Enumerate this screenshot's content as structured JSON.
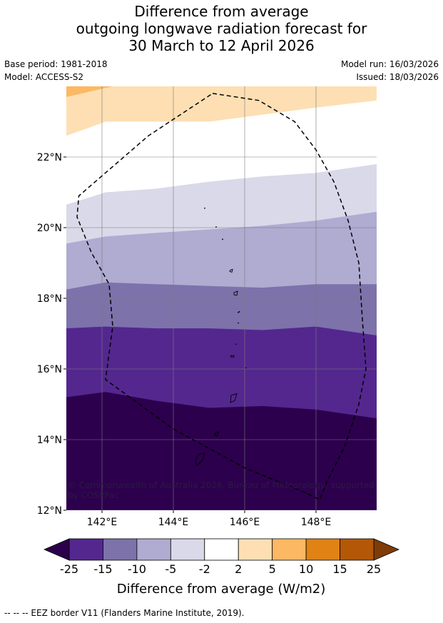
{
  "title": {
    "line1": "Difference from average",
    "line2": "outgoing longwave radiation forecast for",
    "line3": "30 March to 12 April 2026"
  },
  "meta": {
    "base_period": "Base period: 1981-2018",
    "model": "Model: ACCESS-S2",
    "model_run": "Model run: 16/03/2026",
    "issued": "Issued: 18/03/2026"
  },
  "map": {
    "lon_range": [
      141.0,
      149.7
    ],
    "lat_range": [
      12.0,
      24.0
    ],
    "lon_ticks": [
      {
        "value": 142,
        "label": "142°E"
      },
      {
        "value": 144,
        "label": "144°E"
      },
      {
        "value": 146,
        "label": "146°E"
      },
      {
        "value": 148,
        "label": "148°E"
      }
    ],
    "lat_ticks": [
      {
        "value": 12,
        "label": "12°N"
      },
      {
        "value": 14,
        "label": "14°N"
      },
      {
        "value": 16,
        "label": "16°N"
      },
      {
        "value": 18,
        "label": "18°N"
      },
      {
        "value": 20,
        "label": "20°N"
      },
      {
        "value": 22,
        "label": "22°N"
      }
    ],
    "credit_line1": "© Commonwealth of Australia 2026, Bureau of Meteorology, supported",
    "credit_line2": "by COSPPac",
    "bands": [
      {
        "color": "#2c004d",
        "north": [
          15.2,
          15.35,
          15.1,
          14.9,
          14.95,
          14.85,
          14.6
        ]
      },
      {
        "color": "#54278f",
        "north": [
          17.15,
          17.2,
          17.15,
          17.15,
          17.1,
          17.2,
          16.95
        ]
      },
      {
        "color": "#7d72aa",
        "north": [
          18.25,
          18.45,
          18.4,
          18.35,
          18.3,
          18.4,
          18.4
        ]
      },
      {
        "color": "#afabd1",
        "north": [
          19.55,
          19.75,
          19.85,
          19.95,
          20.05,
          20.2,
          20.45
        ]
      },
      {
        "color": "#d9d9e9",
        "north": [
          20.65,
          21.0,
          21.1,
          21.3,
          21.45,
          21.55,
          21.8
        ]
      },
      {
        "color": "#ffffff",
        "north": [
          22.6,
          23.0,
          23.0,
          23.0,
          23.2,
          23.4,
          23.6
        ]
      },
      {
        "color": "#fddfb3",
        "north": [
          24.0,
          24.0,
          24.0,
          24.0,
          24.0,
          24.0,
          24.0
        ]
      }
    ],
    "band_lons": [
      141.0,
      142.1,
      143.5,
      145.0,
      146.5,
      148.0,
      149.7
    ],
    "orange_patch": {
      "color": "#fdb863",
      "points": [
        [
          141.0,
          24.0
        ],
        [
          142.3,
          24.0
        ],
        [
          141.0,
          23.7
        ]
      ]
    },
    "eez_path": [
      [
        145.1,
        23.8
      ],
      [
        146.4,
        23.6
      ],
      [
        147.4,
        23.0
      ],
      [
        148.0,
        22.2
      ],
      [
        148.5,
        21.3
      ],
      [
        148.9,
        20.2
      ],
      [
        149.2,
        19.0
      ],
      [
        149.3,
        17.4
      ],
      [
        149.4,
        16.0
      ],
      [
        149.2,
        15.0
      ],
      [
        148.8,
        13.8
      ],
      [
        148.3,
        12.8
      ],
      [
        148.1,
        12.3
      ],
      [
        147.7,
        12.5
      ],
      [
        146.0,
        13.2
      ],
      [
        144.0,
        14.3
      ],
      [
        142.1,
        15.7
      ],
      [
        142.3,
        17.2
      ],
      [
        142.2,
        18.4
      ],
      [
        141.7,
        19.3
      ],
      [
        141.3,
        20.3
      ],
      [
        141.35,
        20.9
      ],
      [
        143.3,
        22.6
      ],
      [
        145.1,
        23.8
      ]
    ],
    "islands": [
      [
        [
          145.62,
          15.25
        ],
        [
          145.78,
          15.3
        ],
        [
          145.72,
          15.1
        ],
        [
          145.6,
          15.05
        ]
      ],
      [
        [
          145.2,
          14.2
        ],
        [
          145.28,
          14.22
        ],
        [
          145.22,
          14.1
        ],
        [
          145.15,
          14.13
        ]
      ],
      [
        [
          144.7,
          13.58
        ],
        [
          144.88,
          13.62
        ],
        [
          144.82,
          13.42
        ],
        [
          144.66,
          13.26
        ],
        [
          144.62,
          13.4
        ]
      ],
      [
        [
          145.61,
          16.38
        ],
        [
          145.7,
          16.38
        ],
        [
          145.7,
          16.34
        ],
        [
          145.61,
          16.34
        ]
      ],
      [
        [
          145.6,
          18.8
        ],
        [
          145.66,
          18.82
        ],
        [
          145.64,
          18.74
        ],
        [
          145.58,
          18.76
        ]
      ],
      [
        [
          145.7,
          18.16
        ],
        [
          145.8,
          18.2
        ],
        [
          145.78,
          18.08
        ],
        [
          145.7,
          18.1
        ]
      ]
    ],
    "dots": [
      [
        144.88,
        20.55
      ],
      [
        145.2,
        20.02
      ],
      [
        145.38,
        19.67
      ],
      [
        145.82,
        17.6
      ],
      [
        145.82,
        17.3
      ],
      [
        145.75,
        16.7
      ],
      [
        146.03,
        16.03
      ],
      [
        145.85,
        17.62
      ]
    ]
  },
  "colorbar": {
    "title": "Difference from average (W/m2)",
    "tick_labels": [
      "-25",
      "-15",
      "-10",
      "-5",
      "-2",
      "2",
      "5",
      "10",
      "15",
      "25"
    ],
    "segment_colors": [
      "#54278f",
      "#7d72aa",
      "#afabd1",
      "#d9d9e9",
      "#ffffff",
      "#fddfb3",
      "#fdb863",
      "#e08214",
      "#b35806"
    ],
    "under_color": "#2d004b",
    "over_color": "#7f3b08"
  },
  "footnote": "--  --  -- EEZ border V11 (Flanders Marine Institute, 2019)."
}
